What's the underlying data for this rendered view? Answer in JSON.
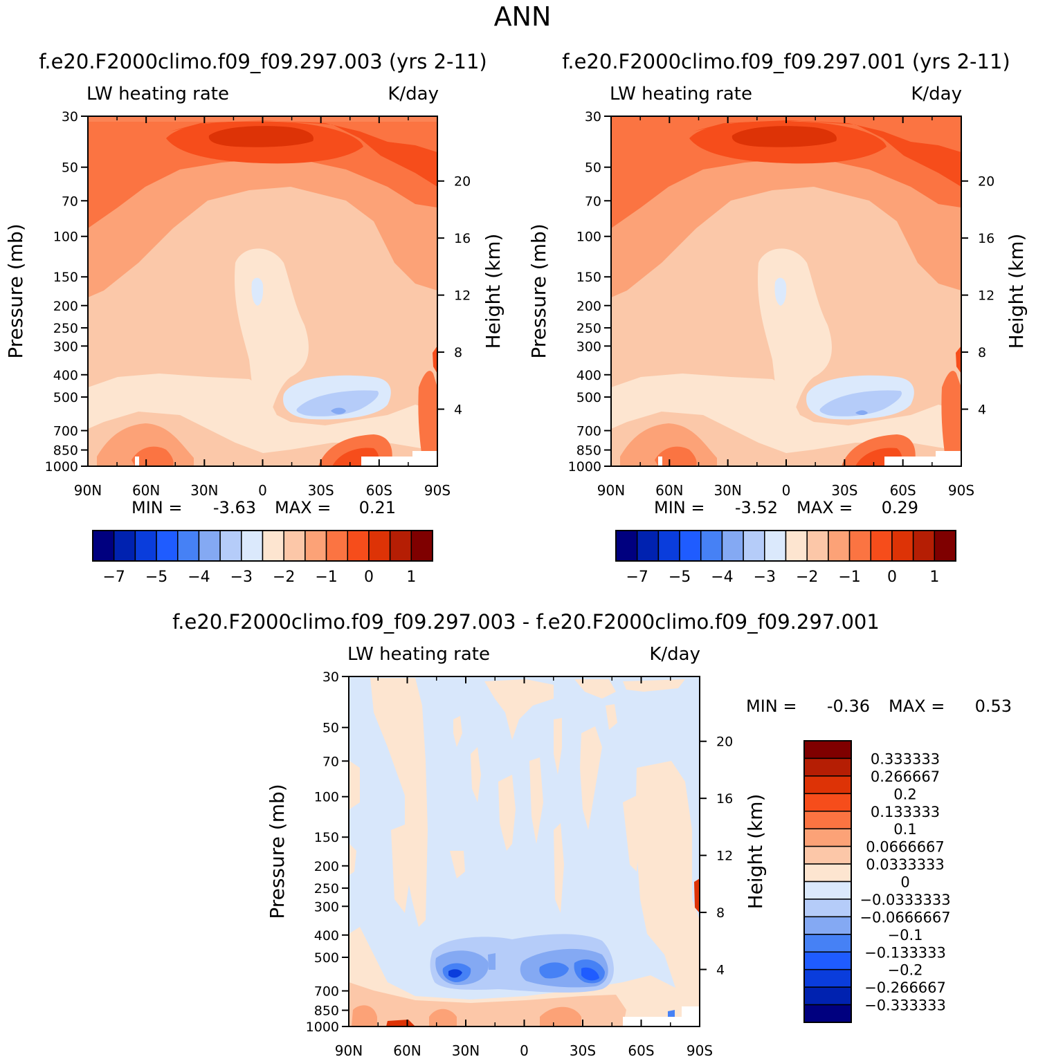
{
  "page_title": "ANN",
  "chart_data": [
    {
      "type": "heatmap",
      "title": "f.e20.F2000climo.f09_f09.297.003 (yrs 2-11)",
      "left_label": "LW heating rate",
      "units": "K/day",
      "ylabel": "Pressure (mb)",
      "ylabel_right": "Height (km)",
      "xlabel": "",
      "x_ticks": [
        "90N",
        "60N",
        "30N",
        "0",
        "30S",
        "60S",
        "90S"
      ],
      "x_range": [
        90,
        -90
      ],
      "y_ticks": [
        30,
        50,
        70,
        100,
        150,
        200,
        250,
        300,
        400,
        500,
        700,
        850,
        1000
      ],
      "y_range": [
        30,
        1000
      ],
      "height_ticks": [
        20,
        16,
        12,
        8,
        4
      ],
      "min_label": "MIN =",
      "min_value": "-3.63",
      "max_label": "MAX =",
      "max_value": "0.21",
      "colorbar_levels": [
        "-7",
        "-5",
        "-4",
        "-3",
        "-2",
        "-1",
        "0",
        "1"
      ]
    },
    {
      "type": "heatmap",
      "title": "f.e20.F2000climo.f09_f09.297.001 (yrs 2-11)",
      "left_label": "LW heating rate",
      "units": "K/day",
      "ylabel": "Pressure (mb)",
      "ylabel_right": "Height (km)",
      "xlabel": "",
      "x_ticks": [
        "90N",
        "60N",
        "30N",
        "0",
        "30S",
        "60S",
        "90S"
      ],
      "x_range": [
        90,
        -90
      ],
      "y_ticks": [
        30,
        50,
        70,
        100,
        150,
        200,
        250,
        300,
        400,
        500,
        700,
        850,
        1000
      ],
      "y_range": [
        30,
        1000
      ],
      "height_ticks": [
        20,
        16,
        12,
        8,
        4
      ],
      "min_label": "MIN =",
      "min_value": "-3.52",
      "max_label": "MAX =",
      "max_value": "0.29",
      "colorbar_levels": [
        "-7",
        "-5",
        "-4",
        "-3",
        "-2",
        "-1",
        "0",
        "1"
      ]
    },
    {
      "type": "heatmap",
      "title": "f.e20.F2000climo.f09_f09.297.003 - f.e20.F2000climo.f09_f09.297.001",
      "left_label": "LW heating rate",
      "units": "K/day",
      "ylabel": "Pressure (mb)",
      "ylabel_right": "Height (km)",
      "xlabel": "",
      "x_ticks": [
        "90N",
        "60N",
        "30N",
        "0",
        "30S",
        "60S",
        "90S"
      ],
      "x_range": [
        90,
        -90
      ],
      "y_ticks": [
        30,
        50,
        70,
        100,
        150,
        200,
        250,
        300,
        400,
        500,
        700,
        850,
        1000
      ],
      "y_range": [
        30,
        1000
      ],
      "height_ticks": [
        20,
        16,
        12,
        8,
        4
      ],
      "min_label": "MIN =",
      "min_value": "-0.36",
      "max_label": "MAX =",
      "max_value": "0.53",
      "colorbar_levels": [
        "0.333333",
        "0.266667",
        "0.2",
        "0.133333",
        "0.1",
        "0.0666667",
        "0.0333333",
        "0",
        "-0.0333333",
        "-0.0666667",
        "-0.1",
        "-0.133333",
        "-0.2",
        "-0.266667",
        "-0.333333"
      ]
    }
  ],
  "colors": {
    "scale": [
      "#00007f",
      "#0022b0",
      "#0a3ddc",
      "#1f5cff",
      "#4681f5",
      "#84a9f3",
      "#b5ccf9",
      "#dbe9fc",
      "#fde5d0",
      "#fcc7a8",
      "#fca277",
      "#fb7442",
      "#f64d1b",
      "#dd3306",
      "#b51e04",
      "#7f0000"
    ],
    "background_fill": "#fbc8a9",
    "diff_background": "#d8e7fb"
  }
}
